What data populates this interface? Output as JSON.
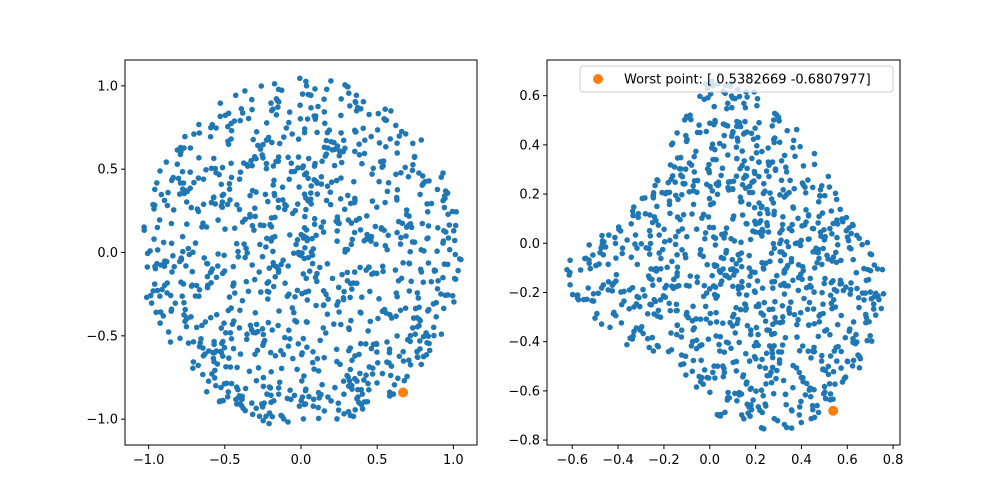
{
  "colors": {
    "scatter": "#1f77b4",
    "highlight": "#ff7f0e",
    "axes": "#000000",
    "background": "#ffffff"
  },
  "chart_data": [
    {
      "type": "scatter",
      "title": "",
      "xlabel": "",
      "ylabel": "",
      "xlim": [
        -1.155,
        1.155
      ],
      "ylim": [
        -1.155,
        1.155
      ],
      "xticks": [
        -1.0,
        -0.5,
        0.0,
        0.5,
        1.0
      ],
      "xtick_labels": [
        "−1.0",
        "−0.5",
        "0.0",
        "0.5",
        "1.0"
      ],
      "yticks": [
        -1.0,
        -0.5,
        0.0,
        0.5,
        1.0
      ],
      "ytick_labels": [
        "−1.0",
        "−0.5",
        "0.0",
        "0.5",
        "1.0"
      ],
      "grid": false,
      "series": [
        {
          "kind": "uniform-points-in-disk",
          "count": 1000,
          "center": [
            0,
            0
          ],
          "radius": 1.05,
          "color": "#1f77b4"
        },
        {
          "kind": "highlight",
          "x": [
            0.67
          ],
          "y": [
            -0.84
          ],
          "color": "#ff7f0e"
        }
      ]
    },
    {
      "type": "scatter",
      "title": "",
      "xlabel": "",
      "ylabel": "",
      "xlim": [
        -0.71,
        0.83
      ],
      "ylim": [
        -0.82,
        0.745
      ],
      "xticks": [
        -0.6,
        -0.4,
        -0.2,
        0.0,
        0.2,
        0.4,
        0.6,
        0.8
      ],
      "xtick_labels": [
        "−0.6",
        "−0.4",
        "−0.2",
        "0.0",
        "0.2",
        "0.4",
        "0.6",
        "0.8"
      ],
      "yticks": [
        -0.8,
        -0.6,
        -0.4,
        -0.2,
        0.0,
        0.2,
        0.4,
        0.6
      ],
      "ytick_labels": [
        "−0.8",
        "−0.6",
        "−0.4",
        "−0.2",
        "0.0",
        "0.2",
        "0.4",
        "0.6"
      ],
      "grid": false,
      "legend": {
        "placement": "top-right",
        "entries": [
          {
            "label": "Worst point: [ 0.5382669 -0.6807977]",
            "color": "#ff7f0e"
          }
        ]
      },
      "series": [
        {
          "kind": "uniform-points-in-polygon",
          "count": 1000,
          "color": "#1f77b4",
          "boundary_x": [
            -0.66,
            -0.52,
            -0.4,
            -0.25,
            -0.1,
            0.0,
            0.1,
            0.2,
            0.33,
            0.45,
            0.58,
            0.65,
            0.73,
            0.77,
            0.74,
            0.62,
            0.5,
            0.4,
            0.25,
            0.16,
            0.05,
            -0.1,
            -0.22,
            -0.35,
            -0.48,
            -0.6
          ],
          "boundary_y": [
            -0.08,
            0.02,
            0.07,
            0.25,
            0.57,
            0.67,
            0.66,
            0.62,
            0.53,
            0.38,
            0.18,
            0.06,
            -0.02,
            -0.15,
            -0.35,
            -0.6,
            -0.7,
            -0.75,
            -0.77,
            -0.73,
            -0.72,
            -0.55,
            -0.48,
            -0.42,
            -0.36,
            -0.22
          ]
        },
        {
          "kind": "highlight",
          "name": "Worst point",
          "x": [
            0.5382669
          ],
          "y": [
            -0.6807977
          ],
          "color": "#ff7f0e"
        }
      ]
    }
  ]
}
